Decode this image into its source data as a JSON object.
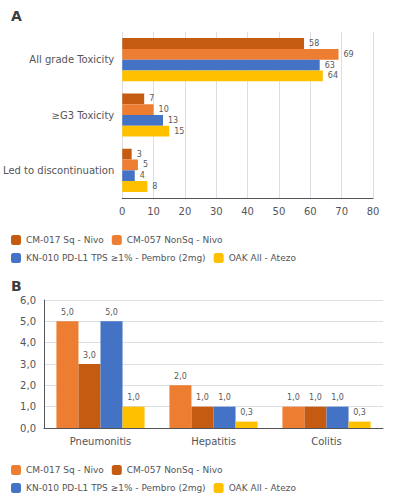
{
  "chart_data": [
    {
      "type": "bar",
      "title": "A",
      "orientation": "horizontal",
      "categories": [
        "All grade Toxicity",
        "≥G3 Toxicity",
        "Led to discontinuation"
      ],
      "series": [
        {
          "name": "CM-017 Sq - Nivo",
          "color": "#C55A11",
          "values": [
            58,
            7,
            3
          ]
        },
        {
          "name": "CM-057 NonSq - Nivo",
          "color": "#ED7D31",
          "values": [
            69,
            10,
            5
          ]
        },
        {
          "name": "KN-010 PD-L1 TPS ≥1% - Pembro (2mg)",
          "color": "#4472C4",
          "values": [
            63,
            13,
            4
          ]
        },
        {
          "name": "OAK All - Atezo",
          "color": "#FFC000",
          "values": [
            64,
            15,
            8
          ]
        }
      ],
      "xlim": [
        0,
        80
      ],
      "xticks": [
        0,
        10,
        20,
        30,
        40,
        50,
        60,
        70,
        80
      ],
      "grid": true,
      "legend": "bottom",
      "data_labels": true
    },
    {
      "type": "bar",
      "title": "B",
      "categories": [
        "Pneumonitis",
        "Hepatitis",
        "Colitis"
      ],
      "series": [
        {
          "name": "CM-017 Sq - Nivo",
          "color": "#ED7D31",
          "values": [
            5.0,
            2.0,
            1.0
          ],
          "value_labels": [
            "5,0",
            "2,0",
            "1,0"
          ]
        },
        {
          "name": "CM-057 NonSq - Nivo",
          "color": "#C55A11",
          "values": [
            3.0,
            1.0,
            1.0
          ],
          "value_labels": [
            "3,0",
            "1,0",
            "1,0"
          ]
        },
        {
          "name": "KN-010 PD-L1 TPS ≥1% - Pembro (2mg)",
          "color": "#4472C4",
          "values": [
            5.0,
            1.0,
            1.0
          ],
          "value_labels": [
            "5,0",
            "1,0",
            "1,0"
          ]
        },
        {
          "name": "OAK All - Atezo",
          "color": "#FFC000",
          "values": [
            1.0,
            0.3,
            0.3
          ],
          "value_labels": [
            "1,0",
            "0,3",
            "0,3"
          ]
        }
      ],
      "ylim": [
        0,
        6.0
      ],
      "yticks": [
        {
          "value": 0.0,
          "label": "0,0"
        },
        {
          "value": 1.0,
          "label": "1,0"
        },
        {
          "value": 2.0,
          "label": "2,0"
        },
        {
          "value": 3.0,
          "label": "3,0"
        },
        {
          "value": 4.0,
          "label": "4,0"
        },
        {
          "value": 5.0,
          "label": "5,0"
        },
        {
          "value": 6.0,
          "label": "6,0"
        }
      ],
      "grid": true,
      "legend": "bottom",
      "data_labels": true
    }
  ]
}
